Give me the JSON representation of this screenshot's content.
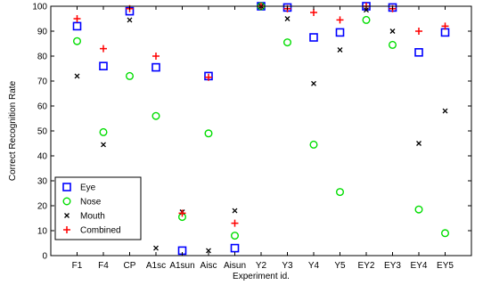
{
  "chart_data": {
    "type": "scatter",
    "title": "",
    "xlabel": "Experiment id.",
    "ylabel": "Correct Recognition Rate",
    "ylim": [
      0,
      100
    ],
    "yticks": [
      0,
      10,
      20,
      30,
      40,
      50,
      60,
      70,
      80,
      90,
      100
    ],
    "grid": false,
    "legend_position": "bottom-left",
    "categories": [
      "F1",
      "F4",
      "CP",
      "A1sc",
      "A1sun",
      "Aisc",
      "Aisun",
      "Y2",
      "Y3",
      "Y4",
      "Y5",
      "EY2",
      "EY3",
      "EY4",
      "EY5"
    ],
    "series": [
      {
        "name": "Eye",
        "marker": "square",
        "color": "#0000ff",
        "values": [
          92,
          76,
          98,
          75.5,
          2,
          72,
          3,
          100,
          99.5,
          87.5,
          89.5,
          100,
          99.5,
          81.5,
          89.5
        ]
      },
      {
        "name": "Nose",
        "marker": "circle",
        "color": "#00dd00",
        "values": [
          86,
          49.5,
          72,
          56,
          15.5,
          49,
          8,
          100,
          85.5,
          44.5,
          25.5,
          94.5,
          84.5,
          18.5,
          9
        ]
      },
      {
        "name": "Mouth",
        "marker": "x",
        "color": "#000000",
        "values": [
          72,
          44.5,
          94.5,
          3,
          17.5,
          2,
          18,
          100,
          95,
          69,
          82.5,
          98.5,
          90,
          45,
          58
        ]
      },
      {
        "name": "Combined",
        "marker": "plus",
        "color": "#ff0000",
        "values": [
          95,
          83,
          99,
          80,
          17,
          71.5,
          13,
          100,
          99,
          97.5,
          94.5,
          100,
          99,
          90,
          92
        ]
      }
    ]
  }
}
